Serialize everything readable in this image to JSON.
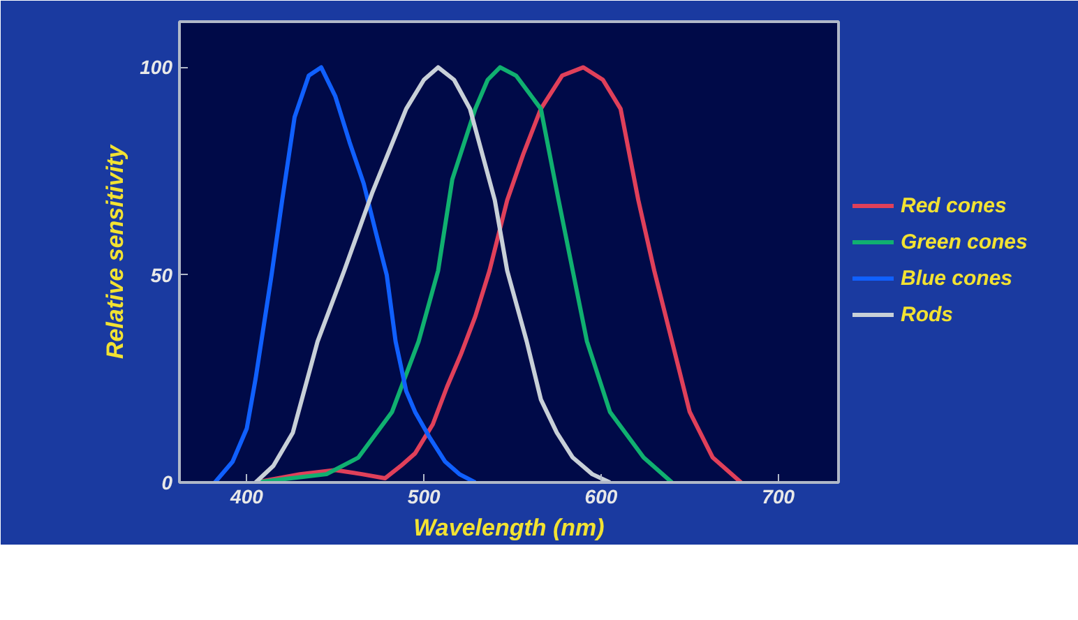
{
  "chart_data": {
    "type": "line",
    "xlabel": "Wavelength (nm)",
    "ylabel": "Relative sensitivity",
    "xlim": [
      362,
      734
    ],
    "ylim": [
      0,
      111
    ],
    "xticks": [
      400,
      500,
      600,
      700
    ],
    "yticks": [
      0,
      50,
      100
    ],
    "grid": false,
    "legend": "right",
    "marker": "none",
    "line_style": "solid",
    "series": [
      {
        "name": "Red cones",
        "color": "#e0405a",
        "x": [
          405,
          430,
          450,
          465,
          478,
          487,
          495,
          505,
          513,
          521,
          529,
          537,
          547,
          556,
          566,
          578,
          590,
          601,
          611,
          621,
          630,
          640,
          650,
          663,
          679
        ],
        "values": [
          0,
          2,
          3,
          2,
          1,
          4,
          7,
          14,
          23,
          31,
          40,
          51,
          68,
          79,
          90,
          98,
          100,
          97,
          90,
          68,
          51,
          34,
          17,
          6,
          0
        ]
      },
      {
        "name": "Green cones",
        "color": "#10b070",
        "x": [
          405,
          425,
          445,
          463,
          482,
          497,
          508,
          516,
          529,
          536,
          543,
          552,
          566,
          576,
          584,
          592,
          605,
          624,
          640
        ],
        "values": [
          0,
          1,
          2,
          6,
          17,
          34,
          51,
          73,
          90,
          97,
          100,
          98,
          90,
          68,
          51,
          34,
          17,
          6,
          0
        ]
      },
      {
        "name": "Blue cones",
        "color": "#1060ff",
        "x": [
          382,
          392,
          400,
          405,
          414,
          420,
          427,
          435,
          442,
          450,
          458,
          466,
          473,
          479,
          484,
          490,
          495,
          503,
          512,
          520,
          529
        ],
        "values": [
          0,
          5,
          13,
          25,
          50,
          68,
          88,
          98,
          100,
          93,
          82,
          72,
          60,
          50,
          34,
          22,
          17,
          11,
          5,
          2,
          0
        ]
      },
      {
        "name": "Rods",
        "color": "#c8d0d8",
        "x": [
          405,
          415,
          426,
          440,
          455,
          471,
          490,
          500,
          508,
          517,
          526,
          540,
          547,
          558,
          566,
          575,
          584,
          595,
          605
        ],
        "values": [
          0,
          4,
          12,
          34,
          51,
          70,
          90,
          97,
          100,
          97,
          90,
          68,
          51,
          34,
          20,
          12,
          6,
          2,
          0
        ]
      }
    ]
  }
}
